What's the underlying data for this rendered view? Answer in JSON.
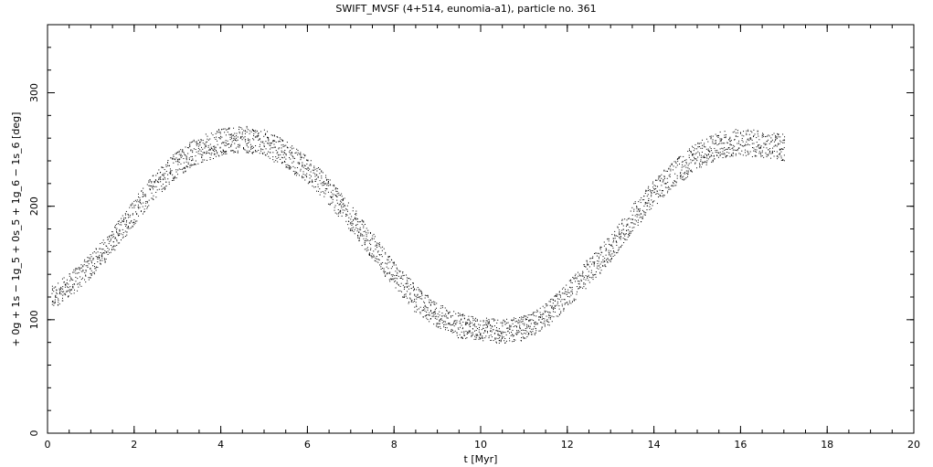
{
  "chart_data": {
    "type": "scatter",
    "title": "SWIFT_MVSF (4+514, eunomia-a1), particle no. 361",
    "xlabel": "t [Myr]",
    "ylabel": "+ 0g + 1s − 1g_5 + 0s_5 + 1g_6 − 1s_6 [deg]",
    "xlim": [
      0,
      20
    ],
    "ylim": [
      0,
      360
    ],
    "x_ticks": [
      0,
      2,
      4,
      6,
      8,
      10,
      12,
      14,
      16,
      18,
      20
    ],
    "y_ticks": [
      0,
      100,
      200,
      300
    ],
    "grid": false,
    "marker_color": "#000000",
    "series": [
      {
        "x": [
          0.1,
          0.5,
          1.0,
          1.5,
          2.0,
          2.5,
          3.0,
          3.5,
          4.0,
          4.5,
          5.0,
          5.5,
          6.0,
          6.5,
          7.0,
          7.5,
          8.0,
          8.5,
          9.0,
          9.5,
          10.0,
          10.5,
          11.0,
          11.5,
          12.0,
          12.5,
          13.0,
          13.5,
          14.0,
          14.5,
          15.0,
          15.5,
          16.0,
          16.5,
          17.0
        ],
        "y": [
          120,
          130,
          148,
          170,
          196,
          220,
          238,
          250,
          257,
          260,
          256,
          246,
          232,
          213,
          190,
          165,
          140,
          118,
          104,
          95,
          92,
          90,
          93,
          104,
          122,
          143,
          163,
          190,
          212,
          230,
          245,
          254,
          257,
          255,
          252
        ],
        "spread": [
          10,
          11,
          11,
          11,
          12,
          12,
          12,
          12,
          12,
          12,
          12,
          12,
          12,
          12,
          12,
          12,
          12,
          12,
          11,
          11,
          10,
          11,
          11,
          11,
          11,
          12,
          12,
          12,
          12,
          12,
          12,
          12,
          12,
          12,
          12
        ]
      }
    ]
  }
}
